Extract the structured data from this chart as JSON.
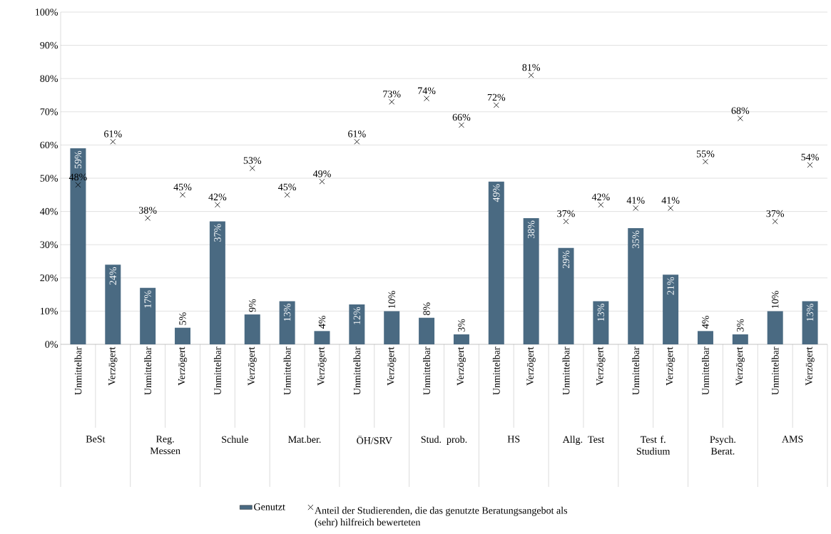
{
  "chart_data": {
    "type": "bar",
    "categories": [
      "Unmittelbar",
      "Verzögert",
      "Unmittelbar",
      "Verzögert",
      "Unmittelbar",
      "Verzögert",
      "Unmittelbar",
      "Verzögert",
      "Unmittelbar",
      "Verzögert",
      "Unmittelbar",
      "Verzögert",
      "Unmittelbar",
      "Verzögert",
      "Unmittelbar",
      "Verzögert",
      "Unmittelbar",
      "Verzögert",
      "Unmittelbar",
      "Verzögert",
      "Unmittelbar",
      "Verzögert"
    ],
    "annotations": [
      "BeSt",
      "Reg. Messen",
      "Schule",
      "Mat.ber.",
      "ÖH/SRV",
      "Stud. prob.",
      "HS",
      "Allg. Test",
      "Test f. Studium",
      "Psych. Berat.",
      "AMS"
    ],
    "series": [
      {
        "name": "Genutzt",
        "color": "#4a6a82",
        "values": [
          59,
          24,
          17,
          5,
          37,
          9,
          13,
          4,
          12,
          10,
          8,
          3,
          49,
          38,
          29,
          13,
          35,
          21,
          4,
          3,
          10,
          13
        ],
        "value_labels": [
          "59%",
          "24%",
          "17%",
          "5%",
          "37%",
          "9%",
          "13%",
          "4%",
          "12%",
          "10%",
          "8%",
          "3%",
          "49%",
          "38%",
          "29%",
          "13%",
          "35%",
          "21%",
          "4%",
          "3%",
          "10%",
          "13%"
        ]
      },
      {
        "name": "Anteil der Studierenden, die das genutzte Beratungsangebot als (sehr) hilfreich bewerteten",
        "type": "scatter",
        "color": "#000000",
        "values": [
          48,
          61,
          38,
          45,
          42,
          53,
          45,
          49,
          61,
          73,
          74,
          66,
          72,
          81,
          37,
          42,
          41,
          41,
          55,
          68,
          37,
          54
        ],
        "value_labels": [
          "48%",
          "61%",
          "38%",
          "45%",
          "42%",
          "53%",
          "45%",
          "49%",
          "61%",
          "73%",
          "74%",
          "66%",
          "72%",
          "81%",
          "37%",
          "42%",
          "41%",
          "41%",
          "55%",
          "68%",
          "37%",
          "54%"
        ]
      }
    ],
    "marker": "cross",
    "ylim": [
      0,
      100
    ],
    "yticks": [
      {
        "value": 0,
        "label": "0%"
      },
      {
        "value": 10,
        "label": "10%"
      },
      {
        "value": 20,
        "label": "20%"
      },
      {
        "value": 30,
        "label": "30%"
      },
      {
        "value": 40,
        "label": "40%"
      },
      {
        "value": 50,
        "label": "50%"
      },
      {
        "value": 60,
        "label": "60%"
      },
      {
        "value": 70,
        "label": "70%"
      },
      {
        "value": 80,
        "label": "80%"
      },
      {
        "value": 90,
        "label": "90%"
      },
      {
        "value": 100,
        "label": "100%"
      }
    ],
    "grid": "y",
    "legend": "bottom"
  }
}
